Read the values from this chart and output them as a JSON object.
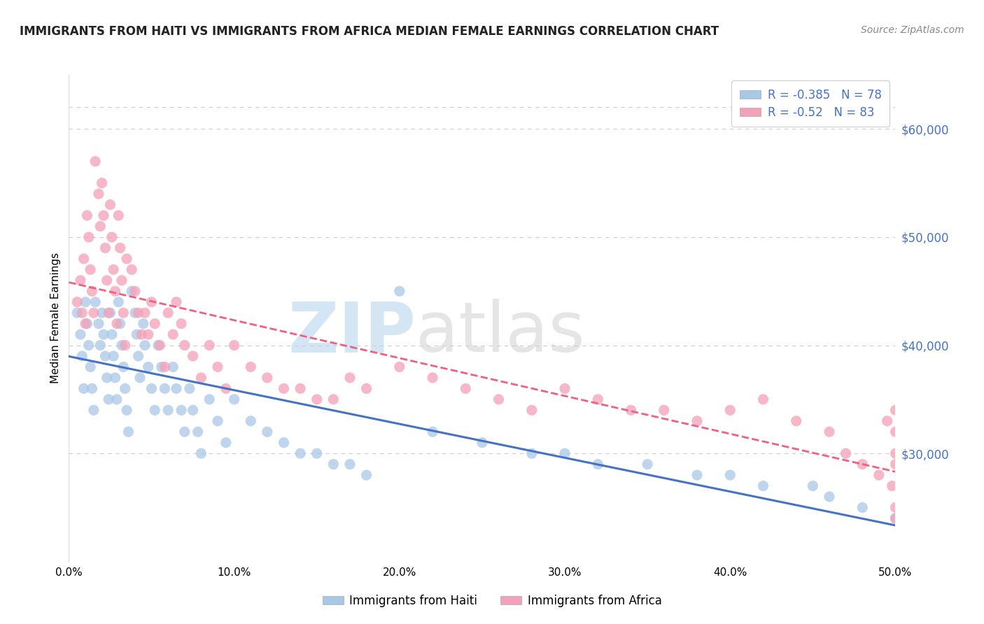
{
  "title": "IMMIGRANTS FROM HAITI VS IMMIGRANTS FROM AFRICA MEDIAN FEMALE EARNINGS CORRELATION CHART",
  "source": "Source: ZipAtlas.com",
  "ylabel": "Median Female Earnings",
  "xlabel_ticks": [
    "0.0%",
    "10.0%",
    "20.0%",
    "30.0%",
    "40.0%",
    "50.0%"
  ],
  "ylabel_ticks": [
    "$30,000",
    "$40,000",
    "$50,000",
    "$60,000"
  ],
  "ylabel_values": [
    30000,
    40000,
    50000,
    60000
  ],
  "xlim": [
    0.0,
    0.5
  ],
  "ylim": [
    20000,
    65000
  ],
  "haiti_R": -0.385,
  "haiti_N": 78,
  "africa_R": -0.52,
  "africa_N": 83,
  "haiti_color": "#a8c8e8",
  "africa_color": "#f4a0b8",
  "haiti_line_color": "#4472c4",
  "africa_line_color": "#f06080",
  "haiti_label": "Immigrants from Haiti",
  "africa_label": "Immigrants from Africa",
  "background_color": "#ffffff",
  "grid_color": "#cccccc",
  "title_color": "#222222",
  "source_color": "#888888",
  "axis_label_color": "#4472c4",
  "haiti_scatter_x": [
    0.005,
    0.007,
    0.008,
    0.009,
    0.01,
    0.011,
    0.012,
    0.013,
    0.014,
    0.015,
    0.016,
    0.018,
    0.019,
    0.02,
    0.021,
    0.022,
    0.023,
    0.024,
    0.025,
    0.026,
    0.027,
    0.028,
    0.029,
    0.03,
    0.031,
    0.032,
    0.033,
    0.034,
    0.035,
    0.036,
    0.038,
    0.04,
    0.041,
    0.042,
    0.043,
    0.045,
    0.046,
    0.048,
    0.05,
    0.052,
    0.054,
    0.056,
    0.058,
    0.06,
    0.063,
    0.065,
    0.068,
    0.07,
    0.073,
    0.075,
    0.078,
    0.08,
    0.085,
    0.09,
    0.095,
    0.1,
    0.11,
    0.12,
    0.13,
    0.14,
    0.15,
    0.16,
    0.17,
    0.18,
    0.2,
    0.22,
    0.25,
    0.28,
    0.3,
    0.32,
    0.35,
    0.38,
    0.4,
    0.42,
    0.45,
    0.46,
    0.48,
    0.5
  ],
  "haiti_scatter_y": [
    43000,
    41000,
    39000,
    36000,
    44000,
    42000,
    40000,
    38000,
    36000,
    34000,
    44000,
    42000,
    40000,
    43000,
    41000,
    39000,
    37000,
    35000,
    43000,
    41000,
    39000,
    37000,
    35000,
    44000,
    42000,
    40000,
    38000,
    36000,
    34000,
    32000,
    45000,
    43000,
    41000,
    39000,
    37000,
    42000,
    40000,
    38000,
    36000,
    34000,
    40000,
    38000,
    36000,
    34000,
    38000,
    36000,
    34000,
    32000,
    36000,
    34000,
    32000,
    30000,
    35000,
    33000,
    31000,
    35000,
    33000,
    32000,
    31000,
    30000,
    30000,
    29000,
    29000,
    28000,
    45000,
    32000,
    31000,
    30000,
    30000,
    29000,
    29000,
    28000,
    28000,
    27000,
    27000,
    26000,
    25000,
    24000
  ],
  "africa_scatter_x": [
    0.005,
    0.007,
    0.008,
    0.009,
    0.01,
    0.011,
    0.012,
    0.013,
    0.014,
    0.015,
    0.016,
    0.018,
    0.019,
    0.02,
    0.021,
    0.022,
    0.023,
    0.024,
    0.025,
    0.026,
    0.027,
    0.028,
    0.029,
    0.03,
    0.031,
    0.032,
    0.033,
    0.034,
    0.035,
    0.038,
    0.04,
    0.042,
    0.044,
    0.046,
    0.048,
    0.05,
    0.052,
    0.055,
    0.058,
    0.06,
    0.063,
    0.065,
    0.068,
    0.07,
    0.075,
    0.08,
    0.085,
    0.09,
    0.095,
    0.1,
    0.11,
    0.12,
    0.13,
    0.14,
    0.15,
    0.16,
    0.17,
    0.18,
    0.2,
    0.22,
    0.24,
    0.26,
    0.28,
    0.3,
    0.32,
    0.34,
    0.36,
    0.38,
    0.4,
    0.42,
    0.44,
    0.46,
    0.47,
    0.48,
    0.49,
    0.495,
    0.498,
    0.5,
    0.5,
    0.5,
    0.5,
    0.5,
    0.5
  ],
  "africa_scatter_y": [
    44000,
    46000,
    43000,
    48000,
    42000,
    52000,
    50000,
    47000,
    45000,
    43000,
    57000,
    54000,
    51000,
    55000,
    52000,
    49000,
    46000,
    43000,
    53000,
    50000,
    47000,
    45000,
    42000,
    52000,
    49000,
    46000,
    43000,
    40000,
    48000,
    47000,
    45000,
    43000,
    41000,
    43000,
    41000,
    44000,
    42000,
    40000,
    38000,
    43000,
    41000,
    44000,
    42000,
    40000,
    39000,
    37000,
    40000,
    38000,
    36000,
    40000,
    38000,
    37000,
    36000,
    36000,
    35000,
    35000,
    37000,
    36000,
    38000,
    37000,
    36000,
    35000,
    34000,
    36000,
    35000,
    34000,
    34000,
    33000,
    34000,
    35000,
    33000,
    32000,
    30000,
    29000,
    28000,
    33000,
    27000,
    29000,
    32000,
    30000,
    34000,
    25000,
    24000
  ]
}
